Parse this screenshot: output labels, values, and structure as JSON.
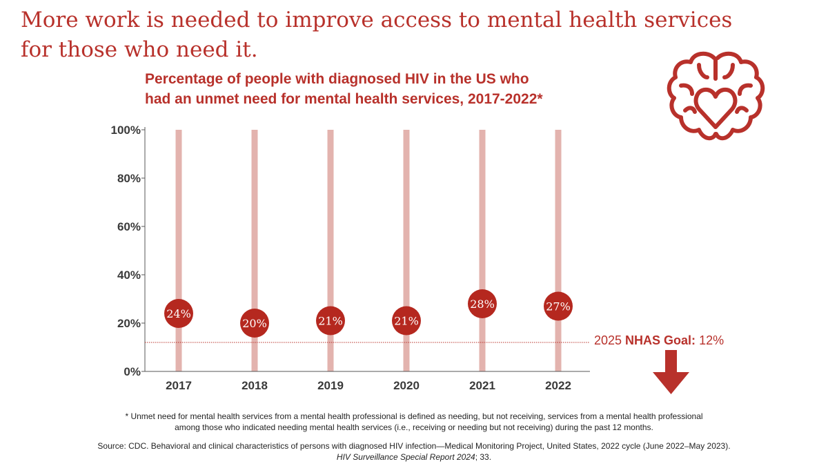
{
  "headline": {
    "line1": "More work is needed to improve access to mental health services",
    "line2": "for those who need it."
  },
  "icons": {
    "brain": "brain-heart-icon",
    "arrow": "down-arrow-icon"
  },
  "colors": {
    "accent": "#b8312b",
    "bar": "#e3b3ae",
    "axis": "#555555",
    "text": "#222222"
  },
  "chart_data": {
    "type": "bar",
    "title_line1": "Percentage of people with diagnosed HIV in the US who",
    "title_line2": "had an unmet need for mental health services, 2017-2022*",
    "categories": [
      "2017",
      "2018",
      "2019",
      "2020",
      "2021",
      "2022"
    ],
    "values": [
      24,
      20,
      21,
      21,
      28,
      27
    ],
    "value_labels": [
      "24%",
      "20%",
      "21%",
      "21%",
      "28%",
      "27%"
    ],
    "y_ticks": [
      0,
      20,
      40,
      60,
      80,
      100
    ],
    "y_tick_labels": [
      "0%",
      "20%",
      "40%",
      "60%",
      "80%",
      "100%"
    ],
    "ylim": [
      0,
      100
    ],
    "xlabel": "",
    "ylabel": "",
    "goal": {
      "value": 12,
      "label_prefix": "2025 ",
      "label_bold": "NHAS Goal:",
      "label_suffix": " 12%"
    }
  },
  "footnote": {
    "line1": "* Unmet need for mental health services from a mental health professional is defined as needing, but not receiving, services from a mental health professional",
    "line2": "among those who indicated needing mental health services (i.e., receiving or needing but not receiving) during the past 12 months."
  },
  "source": {
    "line1": "Source: CDC. Behavioral and clinical characteristics of persons with diagnosed HIV infection—Medical Monitoring Project, United States, 2022 cycle (June 2022–May 2023).",
    "line2_italic": "HIV Surveillance Special Report 2024",
    "line2_rest": "; 33."
  }
}
